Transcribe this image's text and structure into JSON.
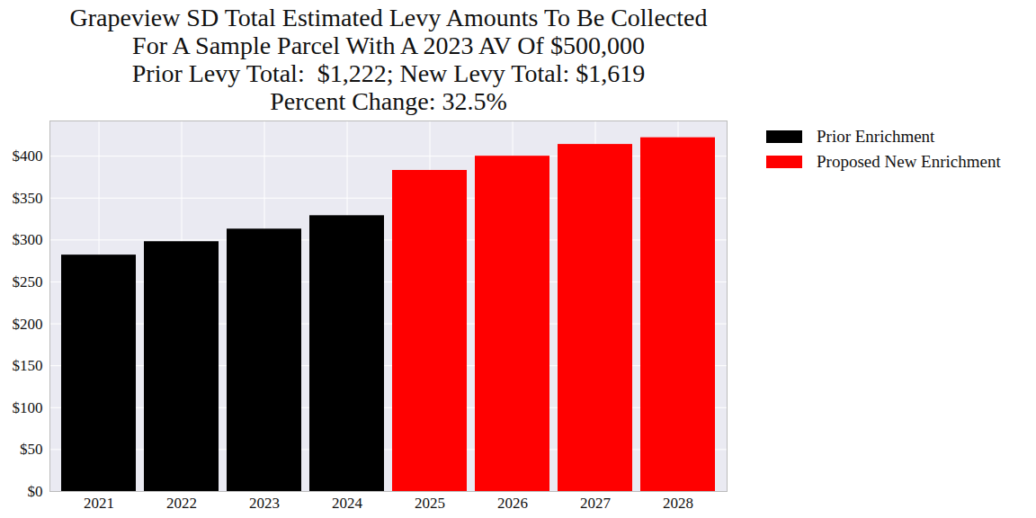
{
  "chart_data": {
    "type": "bar",
    "title": [
      "Grapeview SD Total Estimated Levy Amounts To Be Collected",
      "For A Sample Parcel With A 2023 AV Of $500,000",
      "Prior Levy Total:  $1,222; New Levy Total: $1,619",
      "Percent Change: 32.5%"
    ],
    "categories": [
      "2021",
      "2022",
      "2023",
      "2024",
      "2025",
      "2026",
      "2027",
      "2028"
    ],
    "series": [
      {
        "name": "Prior Enrichment",
        "color": "#000000",
        "values": [
          282,
          298,
          313,
          329,
          null,
          null,
          null,
          null
        ]
      },
      {
        "name": "Proposed New Enrichment",
        "color": "#ff0000",
        "values": [
          null,
          null,
          null,
          null,
          383,
          400,
          414,
          422
        ]
      }
    ],
    "ylim": [
      0,
      442
    ],
    "yticks": [
      {
        "value": 0,
        "label": "$0"
      },
      {
        "value": 50,
        "label": "$50"
      },
      {
        "value": 100,
        "label": "$100"
      },
      {
        "value": 150,
        "label": "$150"
      },
      {
        "value": 200,
        "label": "$200"
      },
      {
        "value": 250,
        "label": "$250"
      },
      {
        "value": 300,
        "label": "$300"
      },
      {
        "value": 350,
        "label": "$350"
      },
      {
        "value": 400,
        "label": "$400"
      }
    ],
    "grid": true,
    "legend": "right"
  }
}
